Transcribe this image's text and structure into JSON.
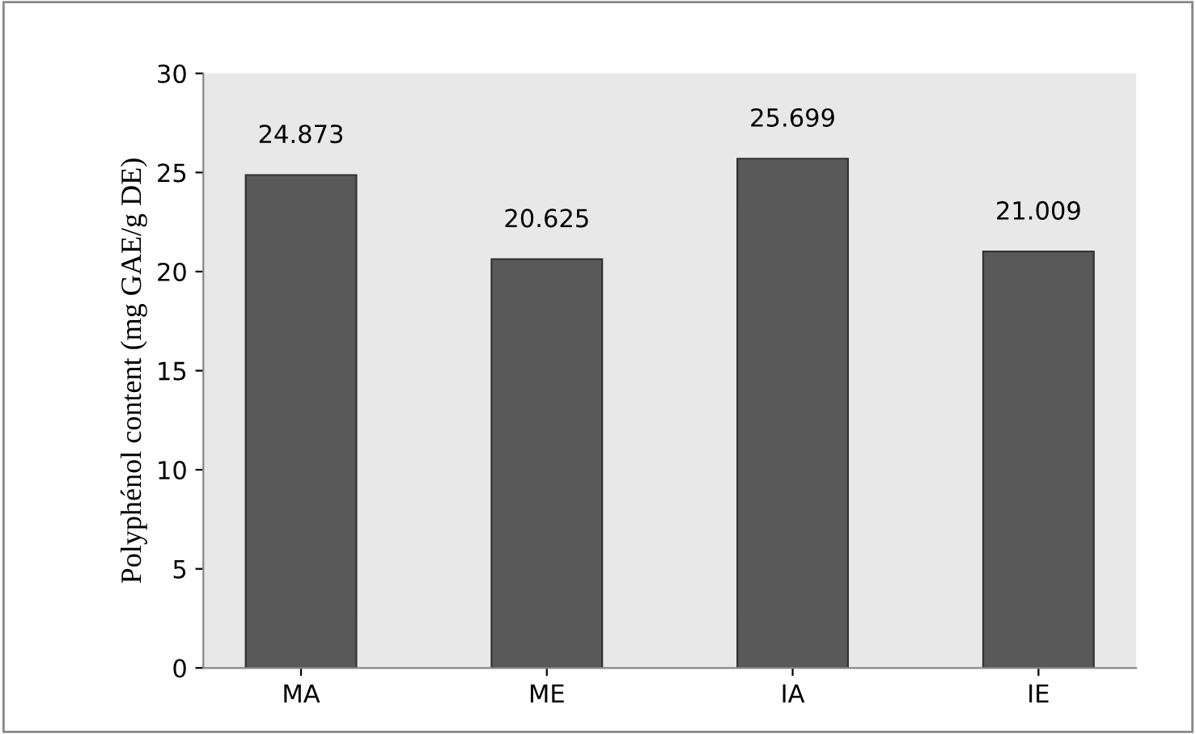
{
  "chart_data": {
    "type": "bar",
    "ylabel": "Polyphénol content (mg GAE/g DE)",
    "categories": [
      "MA",
      "ME",
      "IA",
      "IE"
    ],
    "values": [
      24.873,
      20.625,
      25.699,
      21.009
    ],
    "color": "#595959",
    "ylim": [
      0,
      30
    ],
    "yticks": [
      0,
      5,
      10,
      15,
      20,
      25,
      30
    ],
    "data_labels": true,
    "grid": false,
    "legend": false
  }
}
